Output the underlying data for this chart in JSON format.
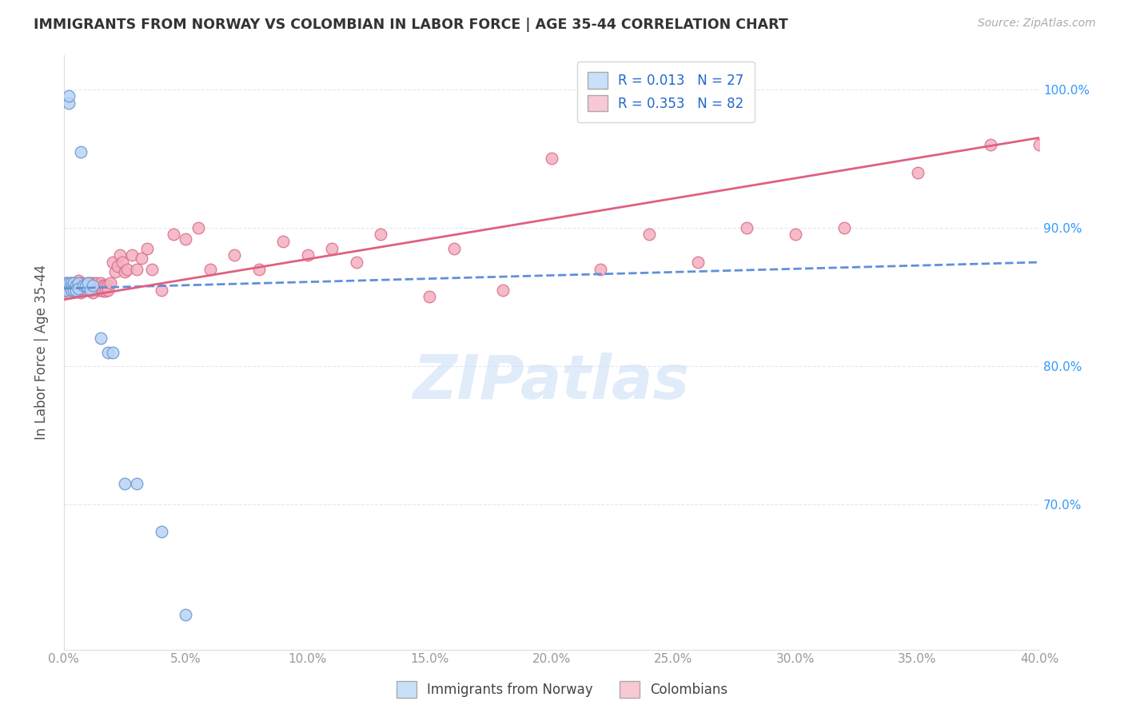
{
  "title": "IMMIGRANTS FROM NORWAY VS COLOMBIAN IN LABOR FORCE | AGE 35-44 CORRELATION CHART",
  "source": "Source: ZipAtlas.com",
  "ylabel": "In Labor Force | Age 35-44",
  "xlim": [
    0.0,
    0.4
  ],
  "ylim": [
    0.595,
    1.025
  ],
  "yticks": [
    0.7,
    0.8,
    0.9,
    1.0
  ],
  "ytick_labels": [
    "70.0%",
    "80.0%",
    "90.0%",
    "100.0%"
  ],
  "xticks": [
    0.0,
    0.05,
    0.1,
    0.15,
    0.2,
    0.25,
    0.3,
    0.35,
    0.4
  ],
  "xtick_labels": [
    "0.0%",
    "5.0%",
    "10.0%",
    "15.0%",
    "20.0%",
    "25.0%",
    "30.0%",
    "35.0%",
    "40.0%"
  ],
  "norway_color": "#b8d4f5",
  "colombian_color": "#f5b0c0",
  "norway_edge_color": "#7098d0",
  "colombian_edge_color": "#d87090",
  "norway_line_color": "#6090d8",
  "colombian_line_color": "#e06080",
  "legend_norway_face": "#c8e0f8",
  "legend_colombian_face": "#f8c8d4",
  "R_norway": 0.013,
  "N_norway": 27,
  "R_colombian": 0.353,
  "N_colombian": 82,
  "norway_x": [
    0.001,
    0.001,
    0.002,
    0.002,
    0.002,
    0.003,
    0.003,
    0.003,
    0.004,
    0.004,
    0.005,
    0.005,
    0.006,
    0.006,
    0.007,
    0.008,
    0.009,
    0.01,
    0.011,
    0.012,
    0.015,
    0.018,
    0.02,
    0.025,
    0.03,
    0.04,
    0.05
  ],
  "norway_y": [
    0.86,
    0.855,
    0.99,
    0.995,
    0.86,
    0.86,
    0.857,
    0.855,
    0.86,
    0.855,
    0.858,
    0.855,
    0.86,
    0.856,
    0.955,
    0.858,
    0.858,
    0.86,
    0.855,
    0.858,
    0.82,
    0.81,
    0.81,
    0.715,
    0.715,
    0.68,
    0.62
  ],
  "colombian_x": [
    0.001,
    0.001,
    0.002,
    0.002,
    0.002,
    0.003,
    0.003,
    0.004,
    0.004,
    0.005,
    0.005,
    0.005,
    0.006,
    0.006,
    0.006,
    0.007,
    0.007,
    0.007,
    0.008,
    0.008,
    0.008,
    0.009,
    0.009,
    0.01,
    0.01,
    0.01,
    0.011,
    0.011,
    0.011,
    0.012,
    0.012,
    0.012,
    0.013,
    0.013,
    0.014,
    0.014,
    0.015,
    0.015,
    0.016,
    0.016,
    0.017,
    0.017,
    0.018,
    0.018,
    0.019,
    0.02,
    0.021,
    0.022,
    0.023,
    0.024,
    0.025,
    0.026,
    0.028,
    0.03,
    0.032,
    0.034,
    0.036,
    0.04,
    0.045,
    0.05,
    0.055,
    0.06,
    0.07,
    0.08,
    0.09,
    0.1,
    0.11,
    0.12,
    0.13,
    0.15,
    0.16,
    0.18,
    0.2,
    0.22,
    0.24,
    0.26,
    0.28,
    0.3,
    0.32,
    0.35,
    0.38,
    0.4
  ],
  "colombian_y": [
    0.86,
    0.858,
    0.858,
    0.855,
    0.853,
    0.86,
    0.855,
    0.858,
    0.854,
    0.86,
    0.858,
    0.855,
    0.862,
    0.858,
    0.855,
    0.86,
    0.857,
    0.853,
    0.86,
    0.858,
    0.855,
    0.858,
    0.855,
    0.86,
    0.858,
    0.855,
    0.86,
    0.858,
    0.854,
    0.86,
    0.857,
    0.853,
    0.86,
    0.857,
    0.858,
    0.855,
    0.86,
    0.855,
    0.858,
    0.854,
    0.858,
    0.854,
    0.858,
    0.855,
    0.86,
    0.875,
    0.868,
    0.872,
    0.88,
    0.875,
    0.868,
    0.87,
    0.88,
    0.87,
    0.878,
    0.885,
    0.87,
    0.855,
    0.895,
    0.892,
    0.9,
    0.87,
    0.88,
    0.87,
    0.89,
    0.88,
    0.885,
    0.875,
    0.895,
    0.85,
    0.885,
    0.855,
    0.95,
    0.87,
    0.895,
    0.875,
    0.9,
    0.895,
    0.9,
    0.94,
    0.96,
    0.96
  ],
  "background_color": "#ffffff",
  "grid_color": "#e0e8f0",
  "title_color": "#333333",
  "axis_label_color": "#555555",
  "tick_color": "#999999",
  "right_tick_color": "#3399ff",
  "watermark_color": "#cce0f5",
  "watermark_alpha": 0.6
}
